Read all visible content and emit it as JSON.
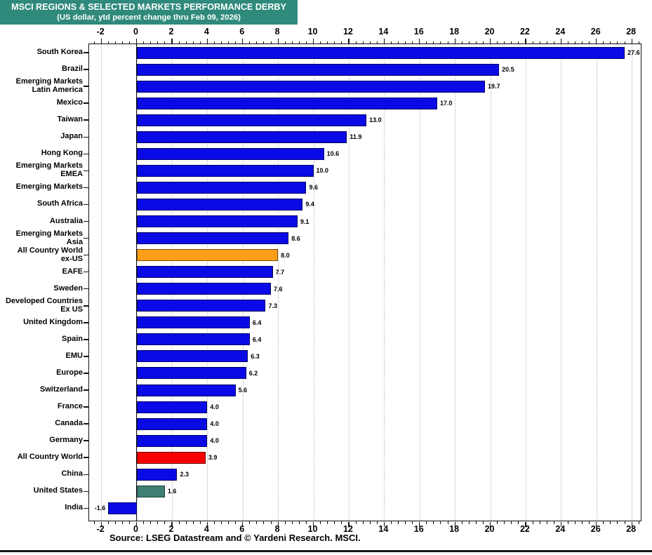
{
  "title": "MSCI REGIONS & SELECTED MARKETS PERFORMANCE DERBY",
  "subtitle": "(US dollar, ytd percent change thru Feb 09, 2026)",
  "source": "Source: LSEG Datastream and © Yardeni Research. MSCI.",
  "colors": {
    "title_background": "#2F8A7B",
    "title_text": "#ffffff",
    "bar_blue": "#0A0AE6",
    "bar_orange": "#FB9E18",
    "bar_red": "#FA0000",
    "bar_teal": "#3E7F71",
    "bar_borders": {
      "#0A0AE6": "#000066",
      "#FB9E18": "#7A4A00",
      "#FA0000": "#6E0000",
      "#3E7F71": "#1C3F37"
    },
    "gridline": "#b9b9b9",
    "axis": "#111111"
  },
  "chart_data": {
    "type": "bar",
    "orientation": "horizontal",
    "title": "MSCI REGIONS & SELECTED MARKETS PERFORMANCE DERBY",
    "subtitle": "(US dollar, ytd percent change thru Feb 09, 2026)",
    "xlabel": "",
    "ylabel": "",
    "xlim": [
      -2.68,
      28.51
    ],
    "xticks": [
      -2,
      0,
      2,
      4,
      6,
      8,
      10,
      12,
      14,
      16,
      18,
      20,
      22,
      24,
      26,
      28
    ],
    "minor_tick_step": 0.4,
    "grid": "vertical dotted lines at major ticks",
    "legend": "none",
    "categories": [
      "South Korea",
      "Brazil",
      "Emerging Markets\nLatin America",
      "Mexico",
      "Taiwan",
      "Japan",
      "Hong Kong",
      "Emerging Markets\nEMEA",
      "Emerging Markets",
      "South Africa",
      "Australia",
      "Emerging Markets\nAsia",
      "All Country World\nex-US",
      "EAFE",
      "Sweden",
      "Developed Countries\nEx US",
      "United Kingdom",
      "Spain",
      "EMU",
      "Europe",
      "Switzerland",
      "France",
      "Canada",
      "Germany",
      "All Country World",
      "China",
      "United States",
      "India"
    ],
    "values": [
      27.6,
      20.5,
      19.7,
      17.0,
      13.0,
      11.9,
      10.6,
      10.0,
      9.6,
      9.4,
      9.1,
      8.6,
      8.0,
      7.7,
      7.6,
      7.3,
      6.4,
      6.4,
      6.3,
      6.2,
      5.6,
      4.0,
      4.0,
      4.0,
      3.9,
      2.3,
      1.6,
      -1.6
    ],
    "value_labels": [
      "27.6",
      "20.5",
      "19.7",
      "17.0",
      "13.0",
      "11.9",
      "10.6",
      "10.0",
      "9.6",
      "9.4",
      "9.1",
      "8.6",
      "8.0",
      "7.7",
      "7.6",
      "7.3",
      "6.4",
      "6.4",
      "6.3",
      "6.2",
      "5.6",
      "4.0",
      "4.0",
      "4.0",
      "3.9",
      "2.3",
      "1.6",
      "-1.6"
    ],
    "bar_colors": [
      "#0A0AE6",
      "#0A0AE6",
      "#0A0AE6",
      "#0A0AE6",
      "#0A0AE6",
      "#0A0AE6",
      "#0A0AE6",
      "#0A0AE6",
      "#0A0AE6",
      "#0A0AE6",
      "#0A0AE6",
      "#0A0AE6",
      "#FB9E18",
      "#0A0AE6",
      "#0A0AE6",
      "#0A0AE6",
      "#0A0AE6",
      "#0A0AE6",
      "#0A0AE6",
      "#0A0AE6",
      "#0A0AE6",
      "#0A0AE6",
      "#0A0AE6",
      "#0A0AE6",
      "#FA0000",
      "#0A0AE6",
      "#3E7F71",
      "#0A0AE6"
    ]
  }
}
